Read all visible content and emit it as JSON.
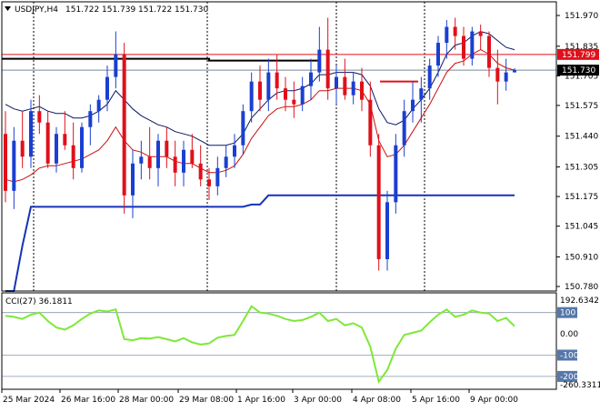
{
  "header": {
    "symbol_label": "USDJPY,H4",
    "open": "151.722",
    "high": "151.739",
    "low": "151.722",
    "close": "151.730"
  },
  "indicator": {
    "label": "CCI(27) 36.1811",
    "max_label": "192.6342",
    "min_label": "-260.3311"
  },
  "price_axis_labels": [
    "151.970",
    "151.835",
    "151.705",
    "151.575",
    "151.440",
    "151.305",
    "151.175",
    "151.045",
    "150.910",
    "150.780"
  ],
  "cci_axis_labels": [
    "100",
    "0.00",
    "-100",
    "-200"
  ],
  "time_axis_labels": [
    "25 Mar 2024",
    "26 Mar 16:00",
    "28 Mar 00:00",
    "29 Mar 08:00",
    "1 Apr 16:00",
    "3 Apr 00:00",
    "4 Apr 08:00",
    "5 Apr 16:00",
    "9 Apr 00:00"
  ],
  "tags": {
    "red_level": "151.799",
    "current_price": "151.730"
  },
  "colors": {
    "bull": "#1a3fd1",
    "bear": "#e0101a",
    "signal_line": "#1433b8",
    "ma_red": "#c81010",
    "ma_navy": "#0a1566",
    "cci_line": "#7ee83a",
    "level_red": "#e0101a",
    "level_black": "#000000",
    "grid": "#c8c8c8"
  },
  "chart_data": {
    "type": "candlestick",
    "symbol": "USDJPY",
    "timeframe": "H4",
    "price_range": [
      150.76,
      152.03
    ],
    "cci_range": [
      -260.3311,
      192.6342
    ],
    "levels": {
      "red_line": 151.799,
      "black_line": 151.78,
      "current_price": 151.73
    },
    "candles": [
      [
        151.45,
        151.55,
        151.15,
        151.2
      ],
      [
        151.2,
        151.48,
        151.12,
        151.42
      ],
      [
        151.42,
        151.55,
        151.3,
        151.35
      ],
      [
        151.35,
        151.6,
        151.3,
        151.55
      ],
      [
        151.55,
        151.62,
        151.45,
        151.5
      ],
      [
        151.5,
        151.55,
        151.3,
        151.32
      ],
      [
        151.32,
        151.48,
        151.28,
        151.45
      ],
      [
        151.45,
        151.55,
        151.38,
        151.4
      ],
      [
        151.4,
        151.5,
        151.25,
        151.3
      ],
      [
        151.3,
        151.5,
        151.28,
        151.48
      ],
      [
        151.48,
        151.58,
        151.4,
        151.55
      ],
      [
        151.55,
        151.62,
        151.5,
        151.6
      ],
      [
        151.6,
        151.75,
        151.55,
        151.7
      ],
      [
        151.7,
        151.9,
        151.65,
        151.8
      ],
      [
        151.8,
        151.85,
        151.1,
        151.18
      ],
      [
        151.18,
        151.38,
        151.08,
        151.32
      ],
      [
        151.32,
        151.42,
        151.25,
        151.35
      ],
      [
        151.35,
        151.48,
        151.25,
        151.3
      ],
      [
        151.3,
        151.45,
        151.22,
        151.42
      ],
      [
        151.42,
        151.48,
        151.3,
        151.35
      ],
      [
        151.35,
        151.42,
        151.22,
        151.28
      ],
      [
        151.28,
        151.42,
        151.22,
        151.38
      ],
      [
        151.38,
        151.45,
        151.3,
        151.32
      ],
      [
        151.32,
        151.4,
        151.22,
        151.25
      ],
      [
        151.25,
        151.3,
        151.16,
        151.22
      ],
      [
        151.22,
        151.35,
        151.18,
        151.3
      ],
      [
        151.3,
        151.4,
        151.26,
        151.35
      ],
      [
        151.35,
        151.45,
        151.3,
        151.4
      ],
      [
        151.4,
        151.58,
        151.36,
        151.55
      ],
      [
        151.55,
        151.72,
        151.5,
        151.68
      ],
      [
        151.68,
        151.75,
        151.55,
        151.6
      ],
      [
        151.6,
        151.78,
        151.55,
        151.72
      ],
      [
        151.72,
        151.8,
        151.6,
        151.65
      ],
      [
        151.65,
        151.7,
        151.55,
        151.6
      ],
      [
        151.6,
        151.68,
        151.52,
        151.58
      ],
      [
        151.58,
        151.7,
        151.55,
        151.66
      ],
      [
        151.66,
        151.78,
        151.6,
        151.72
      ],
      [
        151.72,
        151.92,
        151.68,
        151.82
      ],
      [
        151.82,
        151.96,
        151.6,
        151.65
      ],
      [
        151.65,
        151.75,
        151.58,
        151.7
      ],
      [
        151.7,
        151.78,
        151.6,
        151.62
      ],
      [
        151.62,
        151.72,
        151.58,
        151.68
      ],
      [
        151.68,
        151.74,
        151.55,
        151.6
      ],
      [
        151.6,
        151.68,
        151.35,
        151.4
      ],
      [
        151.4,
        151.45,
        150.85,
        150.9
      ],
      [
        150.9,
        151.2,
        150.85,
        151.15
      ],
      [
        151.15,
        151.45,
        151.1,
        151.4
      ],
      [
        151.4,
        151.6,
        151.35,
        151.55
      ],
      [
        151.55,
        151.68,
        151.5,
        151.6
      ],
      [
        151.6,
        151.7,
        151.5,
        151.65
      ],
      [
        151.65,
        151.78,
        151.6,
        151.75
      ],
      [
        151.75,
        151.88,
        151.7,
        151.85
      ],
      [
        151.85,
        151.95,
        151.78,
        151.92
      ],
      [
        151.92,
        151.96,
        151.82,
        151.88
      ],
      [
        151.88,
        151.92,
        151.75,
        151.78
      ],
      [
        151.78,
        151.92,
        151.75,
        151.9
      ],
      [
        151.9,
        151.93,
        151.82,
        151.88
      ],
      [
        151.88,
        151.9,
        151.7,
        151.74
      ],
      [
        151.74,
        151.82,
        151.58,
        151.68
      ],
      [
        151.68,
        151.78,
        151.64,
        151.72
      ],
      [
        151.72,
        151.739,
        151.722,
        151.73
      ]
    ],
    "ma_red": [
      151.25,
      151.24,
      151.25,
      151.27,
      151.3,
      151.31,
      151.31,
      151.32,
      151.33,
      151.34,
      151.36,
      151.38,
      151.42,
      151.48,
      151.42,
      151.38,
      151.37,
      151.35,
      151.35,
      151.35,
      151.33,
      151.32,
      151.32,
      151.3,
      151.28,
      151.28,
      151.29,
      151.31,
      151.36,
      151.43,
      151.48,
      151.53,
      151.56,
      151.57,
      151.57,
      151.58,
      151.6,
      151.64,
      151.64,
      151.65,
      151.65,
      151.65,
      151.64,
      151.58,
      151.42,
      151.35,
      151.36,
      151.4,
      151.46,
      151.52,
      151.58,
      151.65,
      151.72,
      151.76,
      151.77,
      151.8,
      151.82,
      151.8,
      151.76,
      151.74,
      151.73
    ],
    "ma_navy": [
      151.58,
      151.56,
      151.55,
      151.56,
      151.57,
      151.55,
      151.54,
      151.54,
      151.52,
      151.52,
      151.53,
      151.55,
      151.58,
      151.64,
      151.6,
      151.56,
      151.53,
      151.51,
      151.49,
      151.48,
      151.46,
      151.45,
      151.44,
      151.42,
      151.4,
      151.4,
      151.4,
      151.41,
      151.45,
      151.52,
      151.56,
      151.6,
      151.63,
      151.64,
      151.64,
      151.65,
      151.67,
      151.71,
      151.71,
      151.72,
      151.72,
      151.72,
      151.71,
      151.66,
      151.56,
      151.5,
      151.49,
      151.51,
      151.56,
      151.6,
      151.65,
      151.72,
      151.8,
      151.84,
      151.85,
      151.88,
      151.9,
      151.89,
      151.86,
      151.83,
      151.82
    ],
    "signal_line": [
      150.76,
      150.76,
      150.96,
      151.13,
      151.13,
      151.13,
      151.13,
      151.13,
      151.13,
      151.13,
      151.13,
      151.13,
      151.13,
      151.13,
      151.13,
      151.13,
      151.13,
      151.13,
      151.13,
      151.13,
      151.13,
      151.13,
      151.13,
      151.13,
      151.13,
      151.13,
      151.13,
      151.13,
      151.13,
      151.14,
      151.14,
      151.18,
      151.18,
      151.18,
      151.18,
      151.18,
      151.18,
      151.18,
      151.18,
      151.18,
      151.18,
      151.18,
      151.18,
      151.18,
      151.18,
      151.18,
      151.18,
      151.18,
      151.18,
      151.18,
      151.18,
      151.18,
      151.18,
      151.18,
      151.18,
      151.18,
      151.18,
      151.18,
      151.18,
      151.18,
      151.18
    ],
    "cci": [
      85,
      80,
      70,
      90,
      100,
      60,
      30,
      20,
      40,
      70,
      95,
      110,
      105,
      115,
      -25,
      -30,
      -20,
      -22,
      -15,
      -25,
      -35,
      -20,
      -40,
      -50,
      -45,
      -18,
      -10,
      -5,
      60,
      130,
      100,
      95,
      85,
      70,
      60,
      65,
      80,
      100,
      60,
      70,
      40,
      50,
      30,
      -60,
      -225,
      -170,
      -70,
      -5,
      5,
      15,
      55,
      90,
      115,
      80,
      90,
      110,
      100,
      95,
      60,
      75,
      36.1811
    ]
  }
}
